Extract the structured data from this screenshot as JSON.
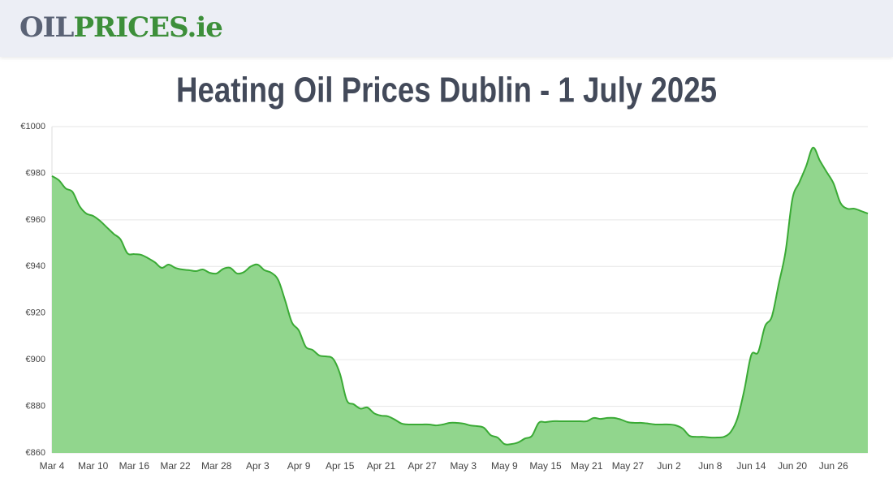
{
  "header": {
    "logo": [
      "OIL",
      "PRICES",
      ".ie"
    ]
  },
  "chart_data": {
    "type": "area",
    "title": "Heating Oil Prices Dublin - 1 July 2025",
    "categories": [
      "Mar 4",
      null,
      null,
      null,
      null,
      null,
      "Mar 10",
      null,
      null,
      null,
      null,
      null,
      "Mar 16",
      null,
      null,
      null,
      null,
      null,
      "Mar 22",
      null,
      null,
      null,
      null,
      null,
      "Mar 28",
      null,
      null,
      null,
      null,
      null,
      "Apr 3",
      null,
      null,
      null,
      null,
      null,
      "Apr 9",
      null,
      null,
      null,
      null,
      null,
      "Apr 15",
      null,
      null,
      null,
      null,
      null,
      "Apr 21",
      null,
      null,
      null,
      null,
      null,
      "Apr 27",
      null,
      null,
      null,
      null,
      null,
      "May 3",
      null,
      null,
      null,
      null,
      null,
      "May 9",
      null,
      null,
      null,
      null,
      null,
      "May 15",
      null,
      null,
      null,
      null,
      null,
      "May 21",
      null,
      null,
      null,
      null,
      null,
      "May 27",
      null,
      null,
      null,
      null,
      null,
      "Jun 2",
      null,
      null,
      null,
      null,
      null,
      "Jun 8",
      null,
      null,
      null,
      null,
      null,
      "Jun 14",
      null,
      null,
      null,
      null,
      null,
      "Jun 20",
      null,
      null,
      null,
      null,
      null,
      "Jun 26",
      null,
      null,
      null,
      null,
      null
    ],
    "series": [
      {
        "color": "#3aaa35",
        "fill": "#91d68d",
        "values": [
          978.8,
          977,
          973.5,
          972,
          966,
          962.7,
          961.7,
          959.6,
          956.8,
          954,
          951.6,
          945.7,
          945.3,
          945,
          943.6,
          941.8,
          939.4,
          940.8,
          939.4,
          938.7,
          938.4,
          938,
          938.7,
          937.3,
          937,
          939,
          939.4,
          937,
          937.6,
          940,
          940.8,
          938.4,
          937.3,
          934.2,
          925.5,
          916,
          912.6,
          905.6,
          904.2,
          901.8,
          901.4,
          900.4,
          894,
          882.6,
          880.9,
          879,
          879.5,
          877,
          876,
          875.7,
          874.3,
          872.6,
          872.2,
          872.2,
          872.2,
          872.2,
          871.8,
          872.2,
          872.9,
          872.9,
          872.6,
          871.8,
          871.5,
          870.8,
          867.6,
          866.6,
          863.8,
          863.8,
          864.5,
          866.2,
          867.3,
          872.9,
          873.2,
          873.6,
          873.6,
          873.6,
          873.6,
          873.6,
          873.6,
          875,
          874.6,
          875,
          875,
          874.3,
          873.2,
          872.9,
          872.9,
          872.6,
          872.2,
          872.2,
          872.2,
          871.8,
          870.4,
          867.3,
          866.9,
          866.9,
          866.6,
          866.6,
          866.9,
          869,
          875,
          887.2,
          902,
          903.2,
          914.3,
          918.5,
          932.4,
          946.4,
          969,
          976,
          983,
          991,
          985.4,
          980.5,
          975.6,
          967.3,
          964.8,
          964.8,
          963.8,
          962.7
        ]
      }
    ],
    "ylim": [
      860,
      1000
    ],
    "yticks": [
      {
        "value": 860,
        "label": "€860"
      },
      {
        "value": 880,
        "label": "€880"
      },
      {
        "value": 900,
        "label": "€900"
      },
      {
        "value": 920,
        "label": "€920"
      },
      {
        "value": 940,
        "label": "€940"
      },
      {
        "value": 960,
        "label": "€960"
      },
      {
        "value": 980,
        "label": "€980"
      },
      {
        "value": 1000,
        "label": "€1000"
      }
    ],
    "grid": true
  }
}
